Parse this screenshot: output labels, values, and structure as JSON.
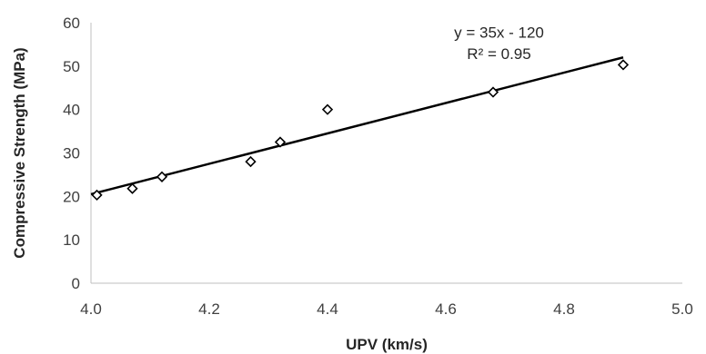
{
  "chart_data": {
    "type": "scatter",
    "title": "",
    "xlabel": "UPV (km/s)",
    "ylabel": "Compressive Strength (MPa)",
    "xlim": [
      4.0,
      5.0
    ],
    "ylim": [
      0,
      60
    ],
    "x_ticks": [
      4.0,
      4.2,
      4.4,
      4.6,
      4.8,
      5.0
    ],
    "x_tick_labels": [
      "4.0",
      "4.2",
      "4.4",
      "4.6",
      "4.8",
      "5.0"
    ],
    "y_ticks": [
      0,
      10,
      20,
      30,
      40,
      50,
      60
    ],
    "y_tick_labels": [
      "0",
      "10",
      "20",
      "30",
      "40",
      "50",
      "60"
    ],
    "grid": false,
    "legend": "none",
    "marker": "diamond",
    "colors": {
      "marker": "#000000",
      "trendline": "#000000",
      "axis": "#bfbfbf"
    },
    "series": [
      {
        "x": [
          4.01,
          4.07,
          4.12,
          4.27,
          4.32,
          4.4,
          4.68,
          4.9
        ],
        "y": [
          20.3,
          21.8,
          24.5,
          28.0,
          32.5,
          40.0,
          44.0,
          50.3
        ]
      }
    ],
    "trendline": {
      "type": "linear",
      "x_range": [
        4.0,
        4.9
      ],
      "y_range": [
        20.5,
        52.0
      ]
    },
    "annotations": {
      "equation": "y = 35x - 120",
      "r_squared": "R² = 0.95"
    }
  }
}
